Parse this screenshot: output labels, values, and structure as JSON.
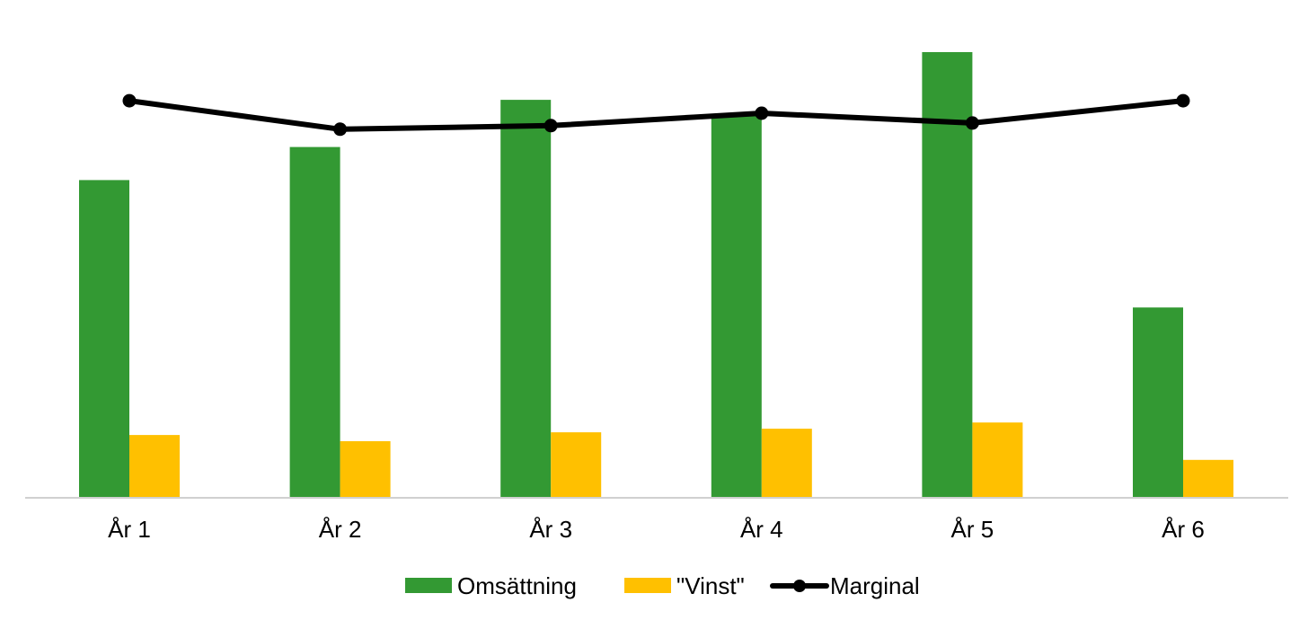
{
  "chart_data": {
    "type": "bar",
    "title": "",
    "xlabel": "",
    "ylabel": "",
    "categories": [
      "År 1",
      "År 2",
      "År 3",
      "År 4",
      "År 5",
      "År 6"
    ],
    "ylim": [
      0,
      100
    ],
    "series": [
      {
        "name": "Omsättning",
        "type": "bar",
        "color": "#339933",
        "values": [
          71.3,
          78.7,
          89.3,
          86.1,
          100,
          42.7
        ]
      },
      {
        "name": "\"Vinst\"",
        "type": "bar",
        "color": "#ffc000",
        "values": [
          14.1,
          12.7,
          14.7,
          15.5,
          16.9,
          8.5
        ]
      },
      {
        "name": "Marginal",
        "type": "line",
        "color": "#000000",
        "values": [
          89.1,
          82.7,
          83.5,
          86.3,
          84.1,
          89.1
        ]
      }
    ],
    "grid": false,
    "legend": "bottom-center"
  }
}
